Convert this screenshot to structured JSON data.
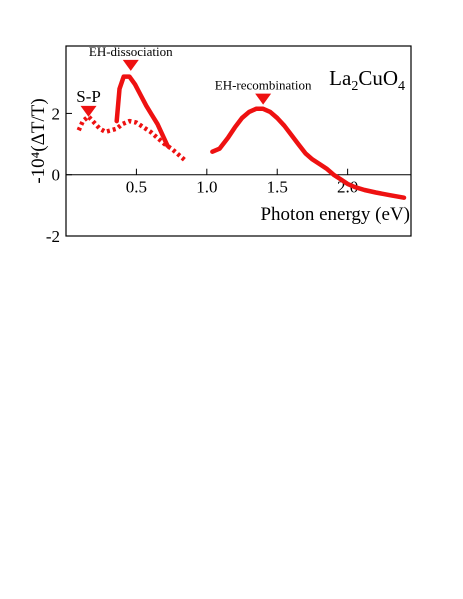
{
  "chart_data": {
    "type": "line",
    "title": "",
    "formula": {
      "parts": [
        {
          "text": "La",
          "sub": false
        },
        {
          "text": "2",
          "sub": true
        },
        {
          "text": "CuO",
          "sub": false
        },
        {
          "text": "4",
          "sub": true
        }
      ]
    },
    "xlabel": "Photon energy (eV)",
    "ylabel": "-10⁴(ΔT/T)",
    "xlim": [
      0.0,
      2.45
    ],
    "ylim": [
      -2.0,
      4.2
    ],
    "x_ticks": [
      0.5,
      1.0,
      1.5,
      2.0
    ],
    "x_tick_labels": [
      "0.5",
      "1.0",
      "1.5",
      "2.0"
    ],
    "y_ticks": [
      2,
      0,
      -2
    ],
    "y_tick_labels": [
      "2",
      "0",
      "-2"
    ],
    "zero_line": true,
    "grid": false,
    "series": [
      {
        "style": "solid",
        "color": "#ee1111",
        "x": [
          0.36,
          0.38,
          0.41,
          0.45,
          0.49,
          0.53,
          0.57,
          0.61,
          0.65,
          0.69,
          0.72
        ],
        "y": [
          1.75,
          2.8,
          3.2,
          3.2,
          2.95,
          2.6,
          2.25,
          1.95,
          1.65,
          1.25,
          0.95
        ]
      },
      {
        "style": "dotted",
        "color": "#ee1111",
        "x": [
          0.09,
          0.12,
          0.16,
          0.2,
          0.24,
          0.28,
          0.32,
          0.36,
          0.4,
          0.45,
          0.5,
          0.55,
          0.6,
          0.65,
          0.7,
          0.75,
          0.8,
          0.85
        ],
        "y": [
          1.45,
          1.75,
          1.9,
          1.7,
          1.5,
          1.4,
          1.45,
          1.5,
          1.65,
          1.75,
          1.7,
          1.55,
          1.4,
          1.2,
          1.0,
          0.85,
          0.65,
          0.45
        ]
      },
      {
        "style": "solid",
        "color": "#ee1111",
        "x": [
          1.04,
          1.09,
          1.15,
          1.2,
          1.25,
          1.3,
          1.35,
          1.4,
          1.45,
          1.5,
          1.55,
          1.6,
          1.65,
          1.7,
          1.75,
          1.8,
          1.85,
          1.9,
          1.95,
          2.0,
          2.05,
          2.12,
          2.2,
          2.3,
          2.4
        ],
        "y": [
          0.75,
          0.85,
          1.2,
          1.55,
          1.85,
          2.05,
          2.15,
          2.15,
          2.05,
          1.85,
          1.6,
          1.3,
          1.0,
          0.7,
          0.5,
          0.35,
          0.2,
          0.0,
          -0.15,
          -0.3,
          -0.4,
          -0.5,
          -0.58,
          -0.67,
          -0.75
        ]
      }
    ],
    "markers": [
      {
        "label": "S-P",
        "x": 0.16,
        "y": 2.05
      },
      {
        "label": "EH-dissociation",
        "x": 0.46,
        "y": 3.55
      },
      {
        "label": "EH-recombination",
        "x": 1.4,
        "y": 2.45
      }
    ],
    "colors": {
      "curve": "#ee1111",
      "marker": "#ee1111",
      "axis": "#000000"
    }
  }
}
